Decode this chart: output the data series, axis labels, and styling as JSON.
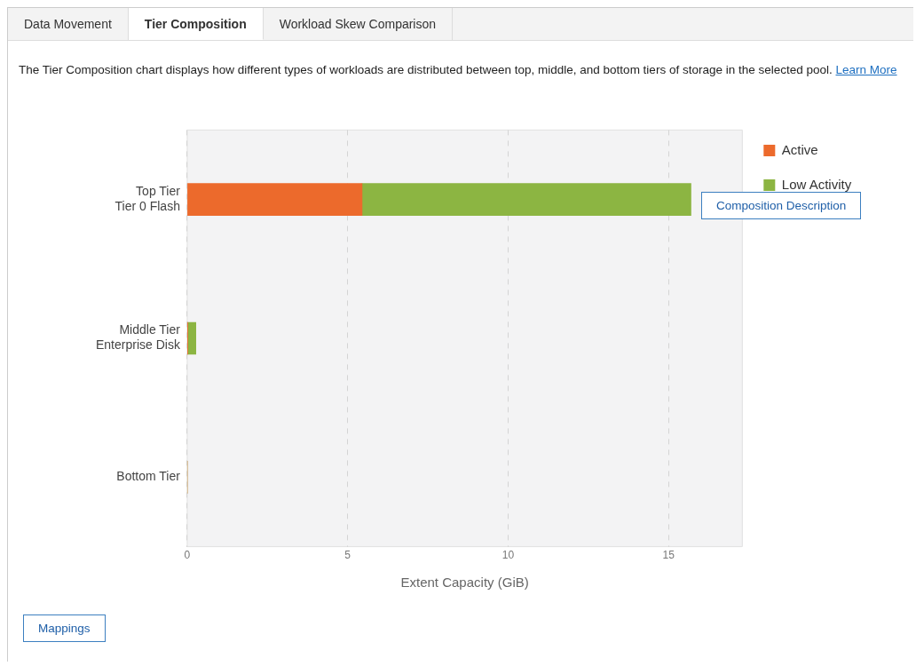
{
  "chart_data": {
    "type": "bar",
    "orientation": "horizontal",
    "stacked": true,
    "categories": [
      "Top Tier\nTier 0 Flash",
      "Middle Tier\nEnterprise Disk",
      "Bottom Tier"
    ],
    "series": [
      {
        "name": "Active",
        "color": "#ec6a2c",
        "values": [
          5.45,
          0.02,
          0
        ]
      },
      {
        "name": "Low Activity",
        "color": "#8cb542",
        "values": [
          10.25,
          0.25,
          0
        ]
      }
    ],
    "xlabel": "Extent Capacity (GiB)",
    "xlim": [
      0,
      17.3
    ],
    "xticks": [
      0,
      5,
      10,
      15
    ],
    "grid": "x",
    "legend": "top right",
    "annotations": [
      "Data Movement",
      "Tier Composition",
      "Workload Skew Comparison",
      "The Tier Composition chart displays how different types of workloads are distributed between top, middle, and bottom tiers of storage in the selected pool.",
      "Learn More",
      "Composition Description",
      "Mappings"
    ]
  }
}
